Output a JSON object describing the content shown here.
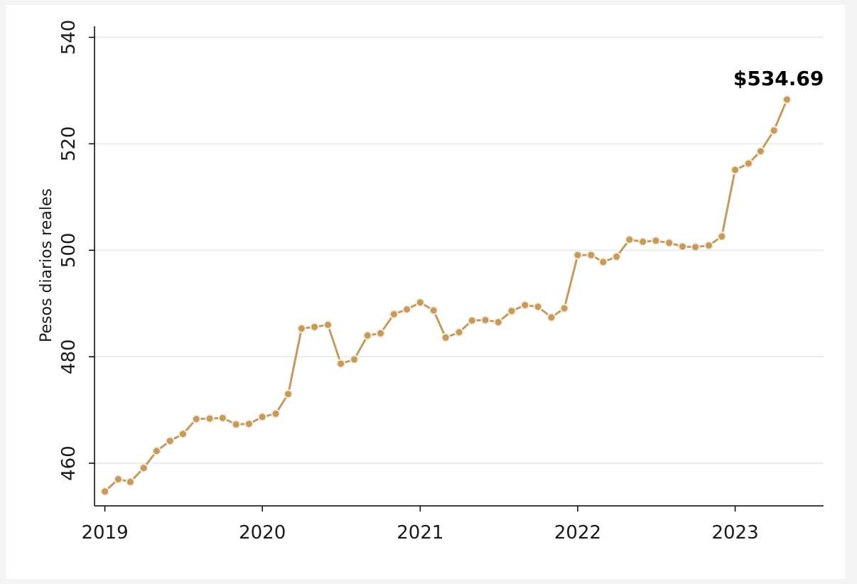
{
  "chart_data": {
    "type": "line",
    "title": "",
    "xlabel": "",
    "ylabel": "Pesos diarios reales",
    "ylim": [
      452,
      541
    ],
    "yticks": [
      460,
      480,
      500,
      520,
      540
    ],
    "xlim": [
      "2018-12-08",
      "2023-07-25"
    ],
    "xticks": [
      {
        "label": "2019",
        "date": "2019-01-01"
      },
      {
        "label": "2020",
        "date": "2020-01-01"
      },
      {
        "label": "2021",
        "date": "2021-01-01"
      },
      {
        "label": "2022",
        "date": "2022-01-01"
      },
      {
        "label": "2023",
        "date": "2023-01-01"
      }
    ],
    "grid": "horizontal",
    "legend": "none",
    "colors": {
      "line": "#c49a5e",
      "grid": "#e6efef",
      "axis": "#000000"
    },
    "annotation": "$534.69",
    "series": [
      {
        "x": [
          "2019-01",
          "2019-02",
          "2019-03",
          "2019-04",
          "2019-05",
          "2019-06",
          "2019-07",
          "2019-08",
          "2019-09",
          "2019-10",
          "2019-11",
          "2019-12",
          "2020-01",
          "2020-02",
          "2020-03",
          "2020-04",
          "2020-05",
          "2020-06",
          "2020-07",
          "2020-08",
          "2020-09",
          "2020-10",
          "2020-11",
          "2020-12",
          "2021-01",
          "2021-02",
          "2021-03",
          "2021-04",
          "2021-05",
          "2021-06",
          "2021-07",
          "2021-08",
          "2021-09",
          "2021-10",
          "2021-11",
          "2021-12",
          "2022-01",
          "2022-02",
          "2022-03",
          "2022-04",
          "2022-05",
          "2022-06",
          "2022-07",
          "2022-08",
          "2022-09",
          "2022-10",
          "2022-11",
          "2022-12",
          "2023-01",
          "2023-02",
          "2023-03",
          "2023-04",
          "2023-05"
        ],
        "values": [
          454.7,
          457.0,
          456.5,
          459.1,
          462.3,
          464.2,
          465.5,
          468.3,
          468.4,
          468.5,
          467.3,
          467.4,
          468.7,
          469.3,
          473.0,
          485.3,
          485.6,
          486.0,
          478.7,
          479.5,
          484.0,
          484.4,
          488.0,
          488.9,
          490.2,
          488.7,
          483.6,
          484.6,
          486.8,
          486.9,
          486.5,
          488.6,
          489.7,
          489.4,
          487.4,
          489.1,
          499.1,
          499.1,
          497.8,
          498.8,
          502.0,
          501.6,
          501.8,
          501.4,
          500.7,
          500.6,
          500.9,
          502.6,
          515.1,
          516.3,
          518.6,
          522.5,
          528.3
        ]
      }
    ]
  }
}
